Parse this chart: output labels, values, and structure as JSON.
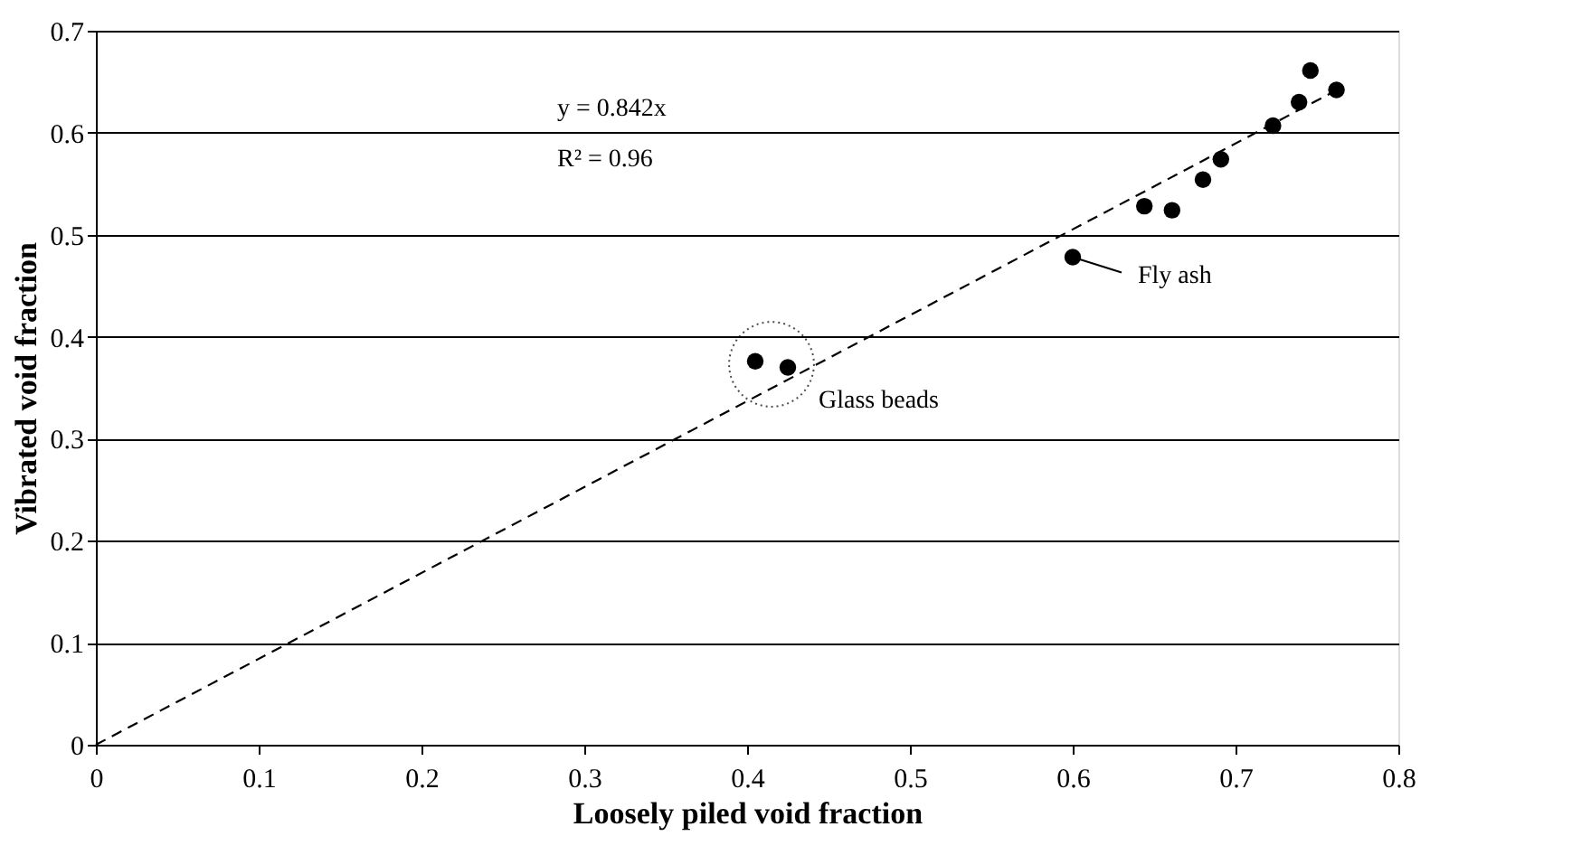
{
  "chart_data": {
    "type": "scatter",
    "xlabel": "Loosely piled void fraction",
    "ylabel": "Vibrated void fraction",
    "xlim": [
      0,
      0.8
    ],
    "xticks": [
      0,
      0.1,
      0.2,
      0.3,
      0.4,
      0.5,
      0.6,
      0.7,
      0.8
    ],
    "ylim": [
      0,
      0.7
    ],
    "yticks": [
      0,
      0.1,
      0.2,
      0.3,
      0.4,
      0.5,
      0.6,
      0.7
    ],
    "grid": "y",
    "marker": "circle",
    "series": [
      {
        "type": "scatter",
        "color": "#000000",
        "x": [
          0.405,
          0.425,
          0.6,
          0.644,
          0.661,
          0.68,
          0.691,
          0.723,
          0.739,
          0.746,
          0.762
        ],
        "values": [
          0.376,
          0.37,
          0.478,
          0.528,
          0.524,
          0.554,
          0.574,
          0.607,
          0.63,
          0.661,
          0.642
        ]
      },
      {
        "type": "line",
        "color": "#000000",
        "line_style": "dashed",
        "marker": "none",
        "x": [
          0,
          0.76
        ],
        "values": [
          0,
          0.64
        ]
      }
    ],
    "annotations": [
      "y = 0.842x",
      "R² = 0.96",
      {
        "text": "Fly ash",
        "x": 0.6,
        "y": 0.478
      },
      {
        "text": "Glass beads",
        "x": 0.415,
        "y": 0.373
      }
    ]
  }
}
